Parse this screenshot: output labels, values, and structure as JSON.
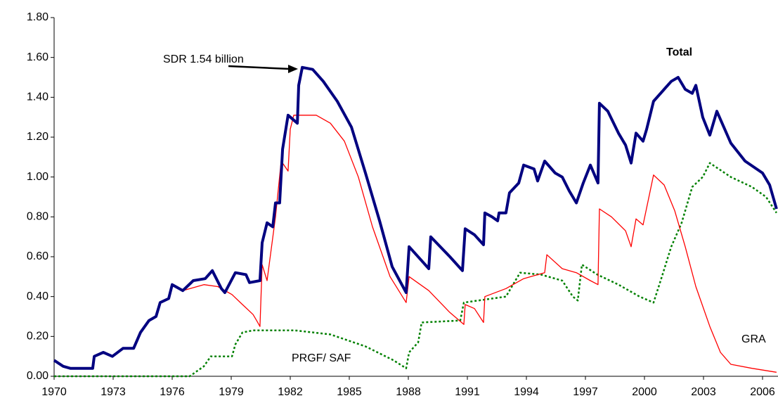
{
  "chart_data": {
    "type": "line",
    "annotations": [
      "SDR 1.54 billion"
    ],
    "xlim": [
      1970,
      2006.8
    ],
    "xticks": [
      1970,
      1973,
      1976,
      1979,
      1982,
      1985,
      1988,
      1991,
      1994,
      1997,
      2000,
      2003,
      2006
    ],
    "ylim": [
      0,
      1.8
    ],
    "yticks": [
      {
        "value": 0,
        "label": "0.00"
      },
      {
        "value": 0.2,
        "label": "0.20"
      },
      {
        "value": 0.4,
        "label": "0.40"
      },
      {
        "value": 0.6,
        "label": "0.60"
      },
      {
        "value": 0.8,
        "label": "0.80"
      },
      {
        "value": 1.0,
        "label": "1.00"
      },
      {
        "value": 1.2,
        "label": "1.20"
      },
      {
        "value": 1.4,
        "label": "1.40"
      },
      {
        "value": 1.6,
        "label": "1.60"
      },
      {
        "value": 1.8,
        "label": "1.80"
      }
    ],
    "grid": false,
    "series": [
      {
        "name": "Total",
        "color": "#000080",
        "x": [
          1970.0,
          1970.46,
          1970.82,
          1971.96,
          1972.04,
          1972.5,
          1972.96,
          1973.5,
          1974.04,
          1974.39,
          1974.82,
          1975.18,
          1975.39,
          1975.82,
          1976.0,
          1976.54,
          1977.07,
          1977.68,
          1978.04,
          1978.5,
          1978.68,
          1979.21,
          1979.75,
          1979.93,
          1980.46,
          1980.57,
          1980.82,
          1981.11,
          1981.25,
          1981.46,
          1981.61,
          1981.89,
          1982.36,
          1982.43,
          1982.61,
          1983.14,
          1983.68,
          1984.39,
          1985.11,
          1985.82,
          1986.54,
          1987.18,
          1987.89,
          1988.04,
          1988.68,
          1989.04,
          1989.14,
          1990.11,
          1990.75,
          1990.89,
          1991.36,
          1991.82,
          1991.89,
          1992.25,
          1992.54,
          1992.61,
          1992.96,
          1993.14,
          1993.61,
          1993.86,
          1994.39,
          1994.57,
          1994.93,
          1995.46,
          1995.82,
          1996.18,
          1996.54,
          1996.89,
          1997.25,
          1997.64,
          1997.71,
          1998.14,
          1998.68,
          1999.04,
          1999.32,
          1999.57,
          1999.93,
          2000.11,
          2000.46,
          2001.0,
          2001.36,
          2001.71,
          2002.07,
          2002.43,
          2002.61,
          2002.96,
          2003.32,
          2003.68,
          2004.39,
          2005.11,
          2006.0,
          2006.36,
          2006.71
        ],
        "values": [
          0.08,
          0.05,
          0.04,
          0.04,
          0.1,
          0.12,
          0.1,
          0.14,
          0.14,
          0.22,
          0.28,
          0.3,
          0.37,
          0.39,
          0.46,
          0.43,
          0.48,
          0.49,
          0.53,
          0.44,
          0.42,
          0.52,
          0.51,
          0.47,
          0.48,
          0.67,
          0.77,
          0.75,
          0.87,
          0.87,
          1.14,
          1.31,
          1.27,
          1.46,
          1.55,
          1.54,
          1.48,
          1.38,
          1.25,
          1.02,
          0.78,
          0.55,
          0.42,
          0.65,
          0.58,
          0.54,
          0.7,
          0.6,
          0.53,
          0.74,
          0.71,
          0.66,
          0.82,
          0.8,
          0.78,
          0.82,
          0.82,
          0.92,
          0.97,
          1.06,
          1.04,
          0.98,
          1.08,
          1.02,
          1.0,
          0.93,
          0.87,
          0.97,
          1.06,
          0.97,
          1.37,
          1.33,
          1.22,
          1.16,
          1.07,
          1.22,
          1.18,
          1.24,
          1.38,
          1.44,
          1.48,
          1.5,
          1.44,
          1.42,
          1.46,
          1.3,
          1.21,
          1.33,
          1.17,
          1.08,
          1.02,
          0.96,
          0.84
        ]
      },
      {
        "name": "GRA",
        "color": "#ff0000",
        "x": [
          1970.0,
          1970.46,
          1970.82,
          1971.96,
          1972.04,
          1972.5,
          1972.96,
          1973.5,
          1974.04,
          1974.39,
          1974.82,
          1975.18,
          1975.39,
          1975.82,
          1976.0,
          1976.54,
          1977.61,
          1978.32,
          1979.04,
          1979.57,
          1980.11,
          1980.29,
          1980.46,
          1980.57,
          1980.82,
          1981.25,
          1981.54,
          1981.89,
          1982.0,
          1982.18,
          1983.32,
          1984.04,
          1984.75,
          1985.46,
          1986.18,
          1987.07,
          1987.89,
          1988.04,
          1989.04,
          1990.11,
          1990.82,
          1990.89,
          1991.36,
          1991.82,
          1991.89,
          1992.96,
          1993.86,
          1994.93,
          1995.04,
          1995.82,
          1996.54,
          1997.25,
          1997.64,
          1997.71,
          1998.32,
          1999.04,
          1999.32,
          1999.57,
          1999.93,
          2000.46,
          2001.0,
          2001.54,
          2002.07,
          2002.61,
          2003.32,
          2003.86,
          2004.39,
          2005.46,
          2006.71
        ],
        "values": [
          0.08,
          0.05,
          0.04,
          0.04,
          0.1,
          0.12,
          0.1,
          0.14,
          0.14,
          0.22,
          0.28,
          0.3,
          0.37,
          0.39,
          0.46,
          0.43,
          0.46,
          0.45,
          0.41,
          0.36,
          0.31,
          0.28,
          0.25,
          0.56,
          0.48,
          0.8,
          1.08,
          1.03,
          1.24,
          1.31,
          1.31,
          1.27,
          1.18,
          1.0,
          0.75,
          0.5,
          0.37,
          0.5,
          0.43,
          0.32,
          0.26,
          0.36,
          0.34,
          0.27,
          0.4,
          0.44,
          0.49,
          0.52,
          0.61,
          0.54,
          0.52,
          0.48,
          0.46,
          0.84,
          0.8,
          0.73,
          0.65,
          0.79,
          0.76,
          1.01,
          0.96,
          0.83,
          0.65,
          0.45,
          0.25,
          0.12,
          0.06,
          0.04,
          0.02
        ]
      },
      {
        "name": "PRGF/ SAF",
        "color": "#008000",
        "x": [
          1970.0,
          1976.89,
          1977.61,
          1977.96,
          1979.04,
          1979.21,
          1979.57,
          1980.11,
          1982.25,
          1984.04,
          1985.82,
          1987.25,
          1987.89,
          1988.04,
          1988.5,
          1988.68,
          1990.64,
          1990.82,
          1992.96,
          1993.68,
          1994.75,
          1995.82,
          1996.36,
          1996.61,
          1996.82,
          1997.61,
          1998.68,
          1999.75,
          2000.46,
          2000.82,
          2001.36,
          2001.89,
          2002.43,
          2002.96,
          2003.32,
          2004.39,
          2005.46,
          2006.18,
          2006.71
        ],
        "values": [
          0,
          0,
          0.05,
          0.1,
          0.1,
          0.16,
          0.22,
          0.23,
          0.23,
          0.21,
          0.15,
          0.08,
          0.04,
          0.12,
          0.17,
          0.27,
          0.28,
          0.37,
          0.4,
          0.52,
          0.51,
          0.48,
          0.4,
          0.38,
          0.56,
          0.51,
          0.46,
          0.4,
          0.37,
          0.48,
          0.65,
          0.77,
          0.95,
          1.0,
          1.07,
          1.0,
          0.95,
          0.9,
          0.82
        ]
      }
    ]
  }
}
